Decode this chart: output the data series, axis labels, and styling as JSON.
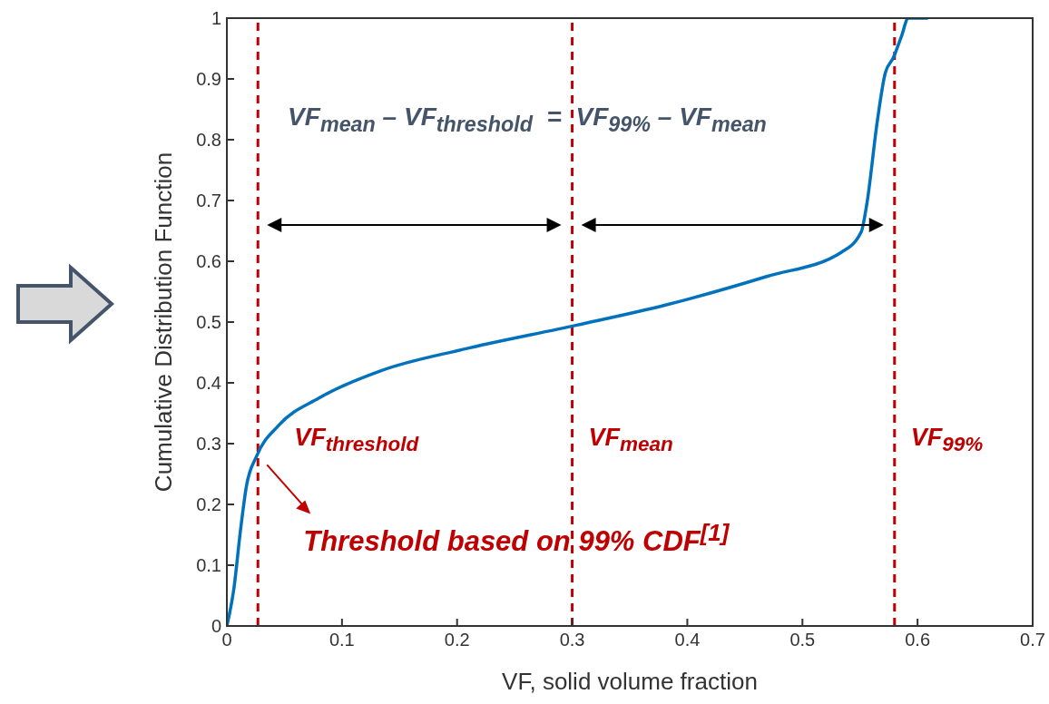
{
  "chart_data": {
    "type": "line",
    "xlabel": "VF, solid volume fraction",
    "ylabel": "Cumulative Distribution Function",
    "x": [
      0,
      0.006,
      0.012,
      0.017,
      0.026,
      0.045,
      0.08,
      0.134,
      0.205,
      0.304,
      0.381,
      0.469,
      0.534,
      0.551,
      0.556,
      0.565,
      0.572,
      0.579,
      0.586,
      0.592,
      0.609
    ],
    "series": [
      {
        "color": "#0072bd",
        "values": [
          0,
          0.06,
          0.16,
          0.23,
          0.28,
          0.33,
          0.375,
          0.42,
          0.455,
          0.495,
          0.528,
          0.575,
          0.615,
          0.648,
          0.695,
          0.83,
          0.91,
          0.935,
          0.97,
          1.0,
          1.0
        ]
      }
    ],
    "xlim": [
      0,
      0.7
    ],
    "xticks": [
      0,
      0.1,
      0.2,
      0.3,
      0.4,
      0.5,
      0.6,
      0.7
    ],
    "ylim": [
      0,
      1
    ],
    "yticks": [
      0,
      0.1,
      0.2,
      0.3,
      0.4,
      0.5,
      0.6,
      0.7,
      0.8,
      0.9,
      1
    ],
    "grid": false,
    "marker": "none",
    "line_style": "solid",
    "ref_lines": [
      {
        "axis": "x",
        "value": 0.027,
        "label": "VF$_{threshold}$",
        "color": "#c00000",
        "line_style": "dashed"
      },
      {
        "axis": "x",
        "value": 0.3,
        "label": "VF$_{mean}$",
        "color": "#c00000",
        "line_style": "dashed"
      },
      {
        "axis": "x",
        "value": 0.58,
        "label": "VF$_{99%}$",
        "color": "#c00000",
        "line_style": "dashed"
      }
    ],
    "annotations": [
      "VF$_{mean}$ – VF$_{threshold}$  =  VF$_{99%}$ – VF$_{mean}$",
      "Threshold based on 99% CDF$^{[1]}$"
    ]
  }
}
